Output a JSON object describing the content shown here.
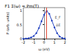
{
  "chart_data": {
    "type": "line",
    "title": "F1 Σ(ω) = Pm(T)",
    "x_label": "ω (eV)",
    "y_label": "P (arb. units)",
    "x": [
      -2,
      -1.75,
      -1.5,
      -1.25,
      -1,
      -0.75,
      -0.5,
      -0.25,
      0,
      0.25,
      0.5,
      0.75,
      1,
      1.25,
      1.5,
      1.75,
      2
    ],
    "values": [
      0,
      0.01,
      0.02,
      0.05,
      0.1,
      0.2,
      0.38,
      0.62,
      0.85,
      0.98,
      0.88,
      0.64,
      0.4,
      0.2,
      0.08,
      0.03,
      0.01
    ],
    "color": "#1f3fbf",
    "marker": "circle",
    "line_style": "solid",
    "reference_x": 0.25,
    "reference_color": "#e0402a",
    "annotations": [
      {
        "text": "E_F",
        "x": 0.7,
        "y": 0.75
      },
      {
        "text": "ΔE",
        "x": 0.8,
        "y": 0.5
      }
    ],
    "xlim": [
      -2,
      2
    ],
    "xticks": [
      -2,
      -1,
      0,
      1,
      2
    ],
    "ylim": [
      0,
      1.1
    ],
    "yticks": [
      0,
      0.5,
      1
    ],
    "grid": false
  }
}
